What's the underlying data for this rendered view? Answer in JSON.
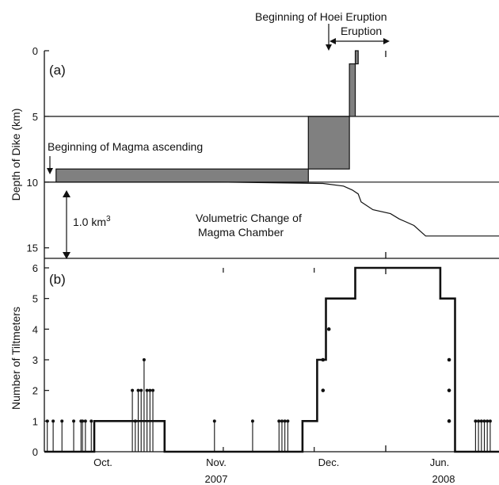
{
  "colors": {
    "line": "#111111",
    "bar_fill": "#808080",
    "background": "#ffffff"
  },
  "annotations": {
    "hoei_begin": "Beginning of Hoei Eruption",
    "eruption": "Eruption",
    "magma_begin": "Beginning of Magma ascending",
    "volume": "1.0 km",
    "volume_sup": "3",
    "chamber_line1": "Volumetric Change of",
    "chamber_line2": "Magma Chamber"
  },
  "panel_a": {
    "label": "(a)",
    "ylabel": "Depth of Dike (km)",
    "yticks": [
      "0",
      "5",
      "10",
      "15"
    ]
  },
  "panel_b": {
    "label": "(b)",
    "ylabel": "Number of Tiltmeters",
    "yticks": [
      "0",
      "1",
      "2",
      "3",
      "4",
      "5",
      "6"
    ]
  },
  "xaxis": {
    "months": [
      "Oct.",
      "Nov.",
      "Dec.",
      "Jun."
    ],
    "years": [
      "2007",
      "2008"
    ]
  },
  "chart_data": [
    {
      "type": "bar",
      "panel": "(a)",
      "ylabel": "Depth of Dike (km)",
      "ylim": [
        15.8,
        0
      ],
      "x_unit": "days from start of axis (Sep 24, 2007); axis broken after Dec. 31, 2007, resuming in 2008",
      "dike_blocks": [
        {
          "x": [
            4,
            90
          ],
          "depth": [
            9,
            10
          ]
        },
        {
          "x": [
            90,
            104
          ],
          "depth": [
            5,
            9
          ]
        },
        {
          "x": [
            104,
            106
          ],
          "depth": [
            1,
            5
          ]
        },
        {
          "x": [
            106,
            107
          ],
          "depth": [
            0,
            1
          ]
        }
      ],
      "chamber_volume_change_curve": {
        "x": [
          0,
          60,
          95,
          102,
          105,
          107,
          108,
          112,
          118,
          121,
          126,
          130,
          140,
          155
        ],
        "y": [
          10,
          10,
          10.1,
          10.3,
          10.6,
          10.9,
          11.5,
          12.1,
          12.4,
          12.8,
          13.3,
          14.1,
          14.1,
          14.1
        ]
      },
      "eruption_x": [
        106,
        130
      ]
    },
    {
      "type": "line",
      "panel": "(b)",
      "ylabel": "Number of Tiltmeters",
      "ylim": [
        0,
        6
      ],
      "x_unit": "days from start of axis (Sep 24, 2007); axis broken after Dec. 31, 2007, resuming in 2008",
      "step": {
        "x": [
          0,
          17,
          17,
          41,
          41,
          62,
          62,
          88,
          88,
          93,
          93,
          96,
          96,
          106,
          106,
          118,
          118,
          135,
          135,
          140,
          140,
          155
        ],
        "y": [
          0,
          0,
          1,
          1,
          0,
          0,
          0,
          0,
          1,
          1,
          3,
          3,
          5,
          5,
          6,
          6,
          6,
          6,
          5,
          5,
          0,
          0
        ]
      },
      "spikes": [
        {
          "x": 1,
          "v": 1
        },
        {
          "x": 3,
          "v": 1
        },
        {
          "x": 6,
          "v": 1
        },
        {
          "x": 10,
          "v": 1
        },
        {
          "x": 12.5,
          "v": 1
        },
        {
          "x": 13,
          "v": 1
        },
        {
          "x": 14,
          "v": 1
        },
        {
          "x": 16,
          "v": 1
        },
        {
          "x": 30,
          "v": 2
        },
        {
          "x": 31,
          "v": 1
        },
        {
          "x": 32,
          "v": 2
        },
        {
          "x": 33,
          "v": 2
        },
        {
          "x": 34,
          "v": 3
        },
        {
          "x": 35,
          "v": 2
        },
        {
          "x": 36,
          "v": 2
        },
        {
          "x": 37,
          "v": 2
        },
        {
          "x": 58,
          "v": 1
        },
        {
          "x": 71,
          "v": 1
        },
        {
          "x": 80,
          "v": 1
        },
        {
          "x": 81,
          "v": 1
        },
        {
          "x": 82,
          "v": 1
        },
        {
          "x": 83,
          "v": 1
        },
        {
          "x": 147,
          "v": 1
        },
        {
          "x": 148,
          "v": 1
        },
        {
          "x": 149,
          "v": 1
        },
        {
          "x": 150,
          "v": 1
        },
        {
          "x": 151,
          "v": 1
        },
        {
          "x": 152,
          "v": 1
        }
      ],
      "points": [
        {
          "x": 95,
          "v": 2
        },
        {
          "x": 95,
          "v": 3
        },
        {
          "x": 97,
          "v": 4
        },
        {
          "x": 138,
          "v": 3
        },
        {
          "x": 138,
          "v": 2
        },
        {
          "x": 138,
          "v": 1
        }
      ]
    }
  ]
}
